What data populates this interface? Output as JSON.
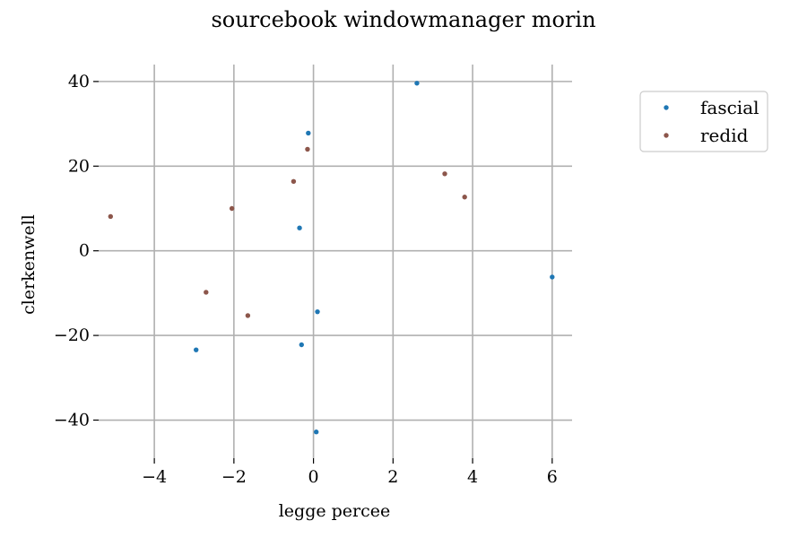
{
  "chart_data": {
    "type": "scatter",
    "title": "sourcebook windowmanager morin",
    "xlabel": "legge percee",
    "ylabel": "clerkenwell",
    "xlim": [
      -5.4,
      6.5
    ],
    "ylim": [
      -49,
      44
    ],
    "x_ticks": [
      -4,
      -2,
      0,
      2,
      4,
      6
    ],
    "y_ticks": [
      -40,
      -20,
      0,
      20,
      40
    ],
    "x_tick_labels": [
      "−4",
      "−2",
      "0",
      "2",
      "4",
      "6"
    ],
    "y_tick_labels": [
      "−40",
      "−20",
      "0",
      "20",
      "40"
    ],
    "grid": true,
    "legend_position": "upper-right-outside",
    "series": [
      {
        "name": "fascial",
        "color": "#1f77b4",
        "points": [
          {
            "x": 2.6,
            "y": 39.6
          },
          {
            "x": -0.13,
            "y": 27.8
          },
          {
            "x": -0.35,
            "y": 5.4
          },
          {
            "x": 6.0,
            "y": -6.2
          },
          {
            "x": 0.1,
            "y": -14.4
          },
          {
            "x": -0.3,
            "y": -22.2
          },
          {
            "x": -2.95,
            "y": -23.4
          },
          {
            "x": 0.07,
            "y": -42.8
          }
        ]
      },
      {
        "name": "redid",
        "color": "#8c564b",
        "points": [
          {
            "x": -0.15,
            "y": 24.0
          },
          {
            "x": -0.5,
            "y": 16.4
          },
          {
            "x": 3.3,
            "y": 18.2
          },
          {
            "x": 3.8,
            "y": 12.7
          },
          {
            "x": -2.05,
            "y": 10.0
          },
          {
            "x": -5.1,
            "y": 8.1
          },
          {
            "x": -2.7,
            "y": -9.8
          },
          {
            "x": -1.65,
            "y": -15.3
          }
        ]
      }
    ]
  }
}
